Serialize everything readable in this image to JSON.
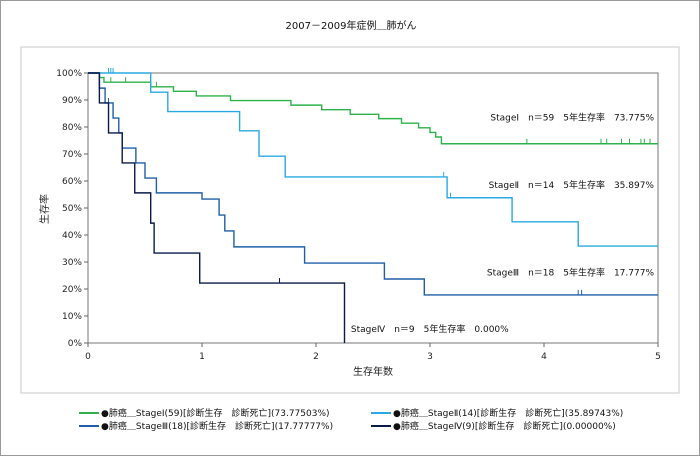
{
  "chart_data": {
    "type": "line",
    "title": "2007－2009年症例＿肺がん",
    "xlabel": "生存年数",
    "ylabel": "生存率",
    "xlim": [
      0,
      5
    ],
    "ylim": [
      0,
      100
    ],
    "x_ticks": [
      "0",
      "1",
      "2",
      "3",
      "4",
      "5"
    ],
    "y_ticks": [
      "0%",
      "10%",
      "20%",
      "30%",
      "40%",
      "50%",
      "60%",
      "70%",
      "80%",
      "90%",
      "100%"
    ],
    "grid": false,
    "legend_position": "bottom",
    "series": [
      {
        "name": "●肺癌＿StageⅠ(59)[診断生存　診断死亡](73.77503%)",
        "color": "#2db34a",
        "steps": [
          [
            0,
            100
          ],
          [
            0.1,
            98.3
          ],
          [
            0.14,
            96.6
          ],
          [
            0.55,
            94.9
          ],
          [
            0.75,
            93.2
          ],
          [
            0.95,
            91.5
          ],
          [
            1.25,
            89.8
          ],
          [
            1.78,
            88.1
          ],
          [
            2.05,
            86.4
          ],
          [
            2.3,
            84.7
          ],
          [
            2.55,
            83.1
          ],
          [
            2.75,
            81.4
          ],
          [
            2.9,
            79.7
          ],
          [
            3.0,
            78.0
          ],
          [
            3.05,
            76.3
          ],
          [
            3.1,
            73.8
          ],
          [
            5.0,
            73.8
          ]
        ],
        "censor": [
          0.2,
          0.33,
          0.6,
          3.85,
          4.5,
          4.55,
          4.68,
          4.75,
          4.85,
          4.88,
          4.93
        ]
      },
      {
        "name": "●肺癌＿StageⅡ(14)[診断生存　診断死亡](35.89743%)",
        "color": "#29aae2",
        "steps": [
          [
            0,
            100
          ],
          [
            0.55,
            92.9
          ],
          [
            0.7,
            85.7
          ],
          [
            1.33,
            78.6
          ],
          [
            1.5,
            69.2
          ],
          [
            1.73,
            61.5
          ],
          [
            3.15,
            53.8
          ],
          [
            3.72,
            44.9
          ],
          [
            4.3,
            35.9
          ],
          [
            5.0,
            35.9
          ]
        ],
        "censor": [
          0.18,
          0.2,
          0.22,
          3.12,
          3.18
        ]
      },
      {
        "name": "●肺癌＿StageⅢ(18)[診断生存　診断死亡](17.77777%)",
        "color": "#1f5fa8",
        "steps": [
          [
            0,
            100
          ],
          [
            0.1,
            94.4
          ],
          [
            0.15,
            88.9
          ],
          [
            0.22,
            83.3
          ],
          [
            0.27,
            77.8
          ],
          [
            0.3,
            72.2
          ],
          [
            0.42,
            66.7
          ],
          [
            0.5,
            61.1
          ],
          [
            0.6,
            55.6
          ],
          [
            1.0,
            53.3
          ],
          [
            1.15,
            47.4
          ],
          [
            1.2,
            41.5
          ],
          [
            1.28,
            35.6
          ],
          [
            1.9,
            29.6
          ],
          [
            2.6,
            23.7
          ],
          [
            2.95,
            17.8
          ],
          [
            5.0,
            17.8
          ]
        ],
        "censor": [
          0.18,
          4.3,
          4.33
        ]
      },
      {
        "name": "●肺癌＿StageⅣ(9)[診断生存　診断死亡](0.00000%)",
        "color": "#0a1a4a",
        "steps": [
          [
            0,
            100
          ],
          [
            0.1,
            88.9
          ],
          [
            0.18,
            77.8
          ],
          [
            0.3,
            66.7
          ],
          [
            0.41,
            55.6
          ],
          [
            0.55,
            44.4
          ],
          [
            0.58,
            33.3
          ],
          [
            0.98,
            22.2
          ],
          [
            2.25,
            0
          ],
          [
            2.25,
            0
          ]
        ],
        "censor": [
          1.68
        ]
      }
    ],
    "annotations": [
      {
        "text": "StageⅠ　n＝59　5年生存率　73.775%",
        "x": 5.0,
        "y": 82.5
      },
      {
        "text": "StageⅡ　n＝14　5年生存率　35.897%",
        "x": 5.0,
        "y": 57.5
      },
      {
        "text": "StageⅢ　n＝18　5年生存率　17.777%",
        "x": 5.0,
        "y": 25.0
      },
      {
        "text": "StageⅣ　n＝9　5年生存率　0.000%",
        "x": 2.28,
        "y": 4.0
      }
    ]
  }
}
